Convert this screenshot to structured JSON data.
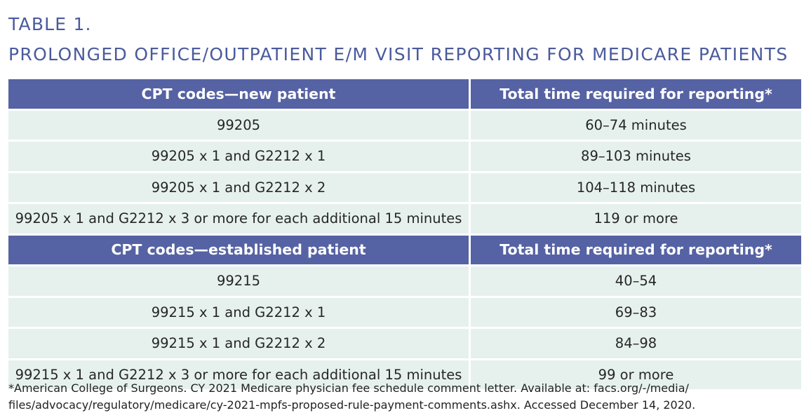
{
  "title": {
    "line1": "TABLE 1.",
    "line2": "PROLONGED OFFICE/OUTPATIENT E/M VISIT REPORTING FOR MEDICARE PATIENTS"
  },
  "sections": [
    {
      "header": [
        "CPT codes—new patient",
        "Total time required for reporting*"
      ],
      "rows": [
        [
          "99205",
          "60–74 minutes"
        ],
        [
          "99205 x 1 and G2212 x 1",
          "89–103 minutes"
        ],
        [
          "99205 x 1 and G2212 x 2",
          "104–118 minutes"
        ],
        [
          "99205 x 1 and G2212 x 3 or more for each additional 15 minutes",
          "119 or more"
        ]
      ]
    },
    {
      "header": [
        "CPT codes—established patient",
        "Total time required for reporting*"
      ],
      "rows": [
        [
          "99215",
          "40–54"
        ],
        [
          "99215 x 1 and G2212 x 1",
          "69–83"
        ],
        [
          "99215 x 1 and G2212 x 2",
          "84–98"
        ],
        [
          "99215 x 1 and G2212 x 3 or more for each additional 15 minutes",
          "99 or more"
        ]
      ]
    }
  ],
  "footnote": {
    "line1": "*American College of Surgeons. CY 2021 Medicare physician fee schedule comment letter. Available at: facs.org/-/media/",
    "line2": "files/advocacy/regulatory/medicare/cy-2021-mpfs-proposed-rule-payment-comments.ashx. Accessed December 14, 2020."
  }
}
